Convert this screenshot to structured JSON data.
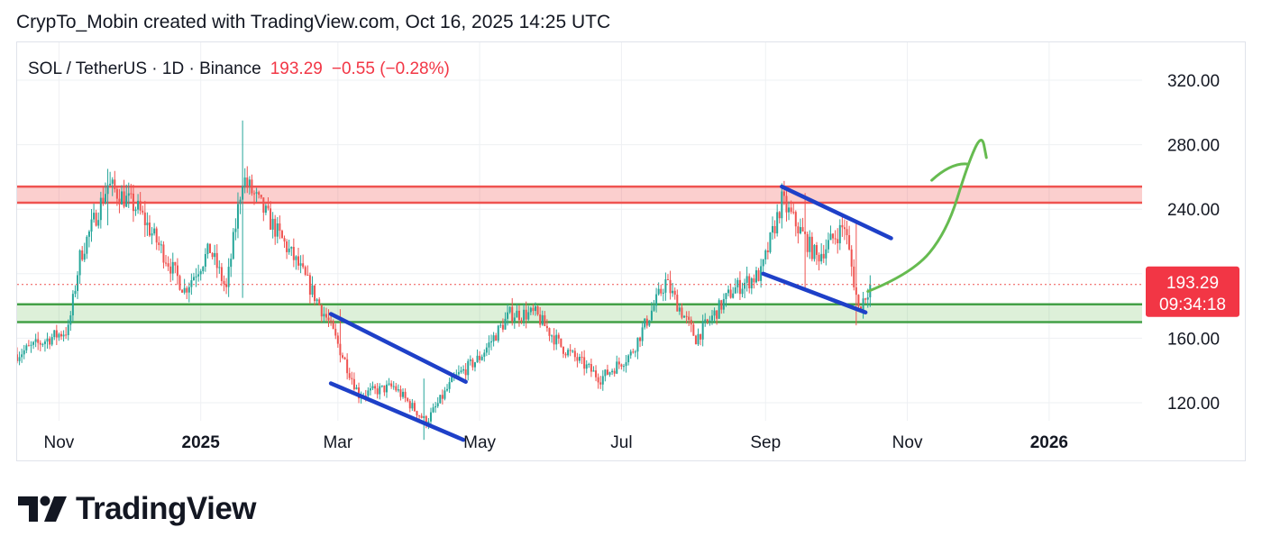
{
  "header": {
    "text": "CrypTo_Mobin created with TradingView.com, Oct 16, 2025 14:25 UTC"
  },
  "brand": {
    "name": "TradingView"
  },
  "colors": {
    "up": "#26a69a",
    "down": "#ef5350",
    "resistance": "#ef5350",
    "support": "#43a047",
    "channel": "#1e40c8",
    "arrow": "#66bb50",
    "grid": "#eef0f3",
    "price_label": "#f23645"
  },
  "chart_data": {
    "type": "candlestick",
    "symbol": "SOL / TetherUS",
    "interval": "1D",
    "exchange": "Binance",
    "last_price": "193.29",
    "change": "−0.55 (−0.28%)",
    "countdown": "09:34:18",
    "y_ticks": [
      "320.00",
      "280.00",
      "240.00",
      "200.00",
      "160.00",
      "120.00"
    ],
    "x_ticks": [
      "Nov",
      "2025",
      "Mar",
      "May",
      "Jul",
      "Sep",
      "Nov",
      "2026"
    ],
    "ylim": [
      88,
      335
    ],
    "x_range": [
      "2024-10-14",
      "2026-02-10"
    ],
    "grid": true,
    "resistance_zone": [
      244,
      254
    ],
    "support_zone": [
      170,
      181
    ],
    "price_anchors": [
      [
        "2024-10-14",
        150
      ],
      [
        "2024-10-28",
        160
      ],
      [
        "2024-11-05",
        165
      ],
      [
        "2024-11-10",
        210
      ],
      [
        "2024-11-22",
        255
      ],
      [
        "2024-12-05",
        240
      ],
      [
        "2024-12-25",
        190
      ],
      [
        "2025-01-05",
        215
      ],
      [
        "2025-01-12",
        190
      ],
      [
        "2025-01-19",
        260
      ],
      [
        "2025-02-01",
        230
      ],
      [
        "2025-02-12",
        205
      ],
      [
        "2025-02-25",
        170
      ],
      [
        "2025-03-10",
        125
      ],
      [
        "2025-03-25",
        130
      ],
      [
        "2025-04-08",
        108
      ],
      [
        "2025-04-20",
        135
      ],
      [
        "2025-05-01",
        148
      ],
      [
        "2025-05-14",
        175
      ],
      [
        "2025-05-25",
        175
      ],
      [
        "2025-06-05",
        155
      ],
      [
        "2025-06-22",
        135
      ],
      [
        "2025-07-05",
        150
      ],
      [
        "2025-07-20",
        195
      ],
      [
        "2025-08-02",
        160
      ],
      [
        "2025-08-18",
        190
      ],
      [
        "2025-08-30",
        200
      ],
      [
        "2025-09-08",
        245
      ],
      [
        "2025-09-23",
        210
      ],
      [
        "2025-10-05",
        230
      ],
      [
        "2025-10-11",
        178
      ],
      [
        "2025-10-16",
        193
      ]
    ],
    "spikes": [
      [
        "2025-01-19",
        295,
        185
      ],
      [
        "2025-03-02",
        178,
        145
      ],
      [
        "2025-04-07",
        135,
        97
      ],
      [
        "2025-10-10",
        232,
        168
      ],
      [
        "2024-11-22",
        265,
        230
      ],
      [
        "2025-09-18",
        250,
        190
      ]
    ],
    "channels": [
      {
        "from": [
          "2025-02-26",
          175
        ],
        "to": [
          "2025-04-25",
          133
        ]
      },
      {
        "from": [
          "2025-02-26",
          132
        ],
        "to": [
          "2025-04-24",
          97
        ]
      },
      {
        "from": [
          "2025-09-08",
          254
        ],
        "to": [
          "2025-10-25",
          222
        ]
      },
      {
        "from": [
          "2025-08-31",
          200
        ],
        "to": [
          "2025-10-14",
          176
        ]
      }
    ],
    "projection_arrow": [
      [
        "2025-10-15",
        189
      ],
      [
        "2025-11-03",
        200
      ],
      [
        "2025-11-18",
        226
      ],
      [
        "2025-11-27",
        268
      ],
      [
        "2025-12-03",
        287
      ],
      [
        "2025-12-05",
        272
      ]
    ]
  }
}
